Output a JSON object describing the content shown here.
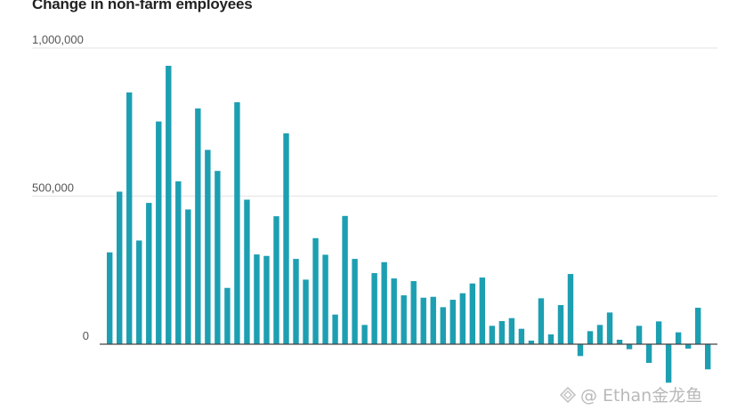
{
  "chart_data": {
    "type": "bar",
    "title": "Change in non-farm employees",
    "ylim": [
      -160000,
      1050000
    ],
    "yticks": [
      {
        "value": 1000000,
        "label": "1,000,000"
      },
      {
        "value": 500000,
        "label": "500,000"
      },
      {
        "value": 0,
        "label": "0"
      }
    ],
    "grid": true,
    "bar_color": "#1d9fb2",
    "values": [
      310000,
      515000,
      850000,
      350000,
      477000,
      752000,
      940000,
      550000,
      455000,
      796000,
      656000,
      585000,
      190000,
      817000,
      488000,
      303000,
      298000,
      432000,
      712000,
      288000,
      218000,
      358000,
      302000,
      100000,
      433000,
      288000,
      65000,
      240000,
      277000,
      222000,
      165000,
      213000,
      157000,
      160000,
      125000,
      150000,
      172000,
      205000,
      225000,
      62000,
      78000,
      88000,
      52000,
      12000,
      155000,
      33000,
      132000,
      237000,
      -40000,
      44000,
      65000,
      107000,
      15000,
      -17000,
      62000,
      -63000,
      77000,
      -130000,
      40000,
      -15000,
      123000,
      -85000
    ]
  },
  "watermark": {
    "text": "@ Ethan金龙鱼"
  }
}
